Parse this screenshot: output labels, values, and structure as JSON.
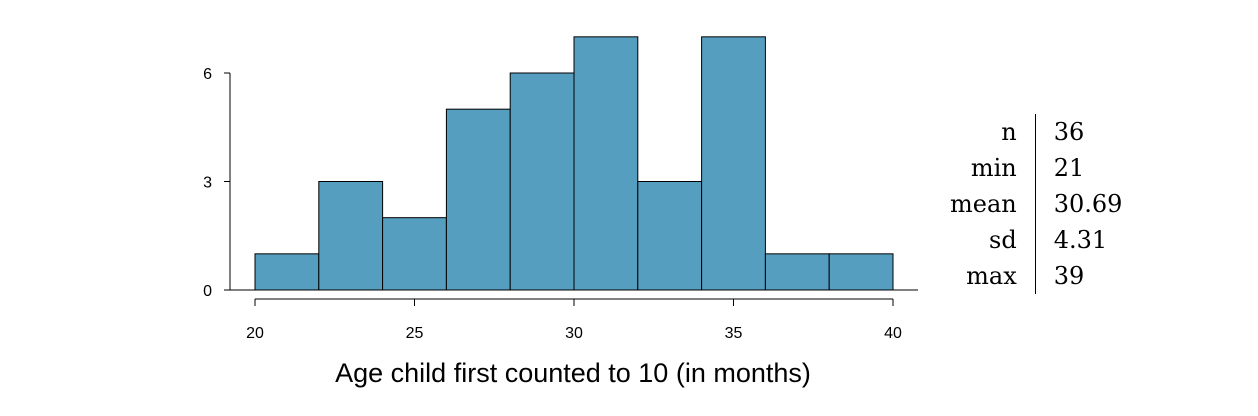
{
  "chart_data": {
    "type": "bar",
    "title": "",
    "xlabel": "Age child first counted to 10 (in months)",
    "ylabel": "",
    "bins": [
      {
        "start": 20,
        "end": 22,
        "count": 1
      },
      {
        "start": 22,
        "end": 24,
        "count": 3
      },
      {
        "start": 24,
        "end": 26,
        "count": 2
      },
      {
        "start": 26,
        "end": 28,
        "count": 5
      },
      {
        "start": 28,
        "end": 30,
        "count": 6
      },
      {
        "start": 30,
        "end": 32,
        "count": 7
      },
      {
        "start": 32,
        "end": 34,
        "count": 3
      },
      {
        "start": 34,
        "end": 36,
        "count": 7
      },
      {
        "start": 36,
        "end": 38,
        "count": 1
      },
      {
        "start": 38,
        "end": 40,
        "count": 1
      }
    ],
    "xticks": [
      "20",
      "25",
      "30",
      "35",
      "40"
    ],
    "yticks": [
      "0",
      "3",
      "6"
    ],
    "xlim": [
      20,
      40
    ],
    "ylim": [
      0,
      7
    ],
    "grid": false,
    "bar_color": "#569EBF"
  },
  "stats": [
    {
      "label": "n",
      "value": "36"
    },
    {
      "label": "min",
      "value": "21"
    },
    {
      "label": "mean",
      "value": "30.69"
    },
    {
      "label": "sd",
      "value": "4.31"
    },
    {
      "label": "max",
      "value": "39"
    }
  ]
}
